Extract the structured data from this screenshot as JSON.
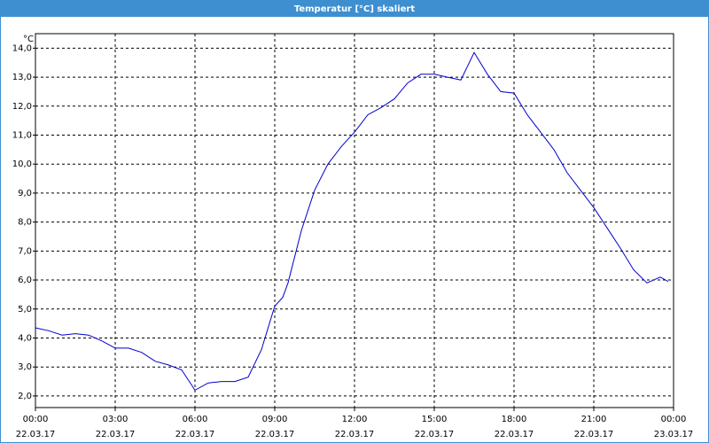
{
  "chart_data": {
    "type": "line",
    "title": "Temperatur [°C] skaliert",
    "y_label": "°C",
    "color": "#0000cc",
    "grid": true,
    "x": [
      0,
      0.5,
      1,
      1.5,
      2,
      2.5,
      3,
      3.5,
      4,
      4.5,
      5,
      5.5,
      6,
      6.5,
      7,
      7.5,
      8,
      8.5,
      9,
      9.3,
      9.5,
      10,
      10.5,
      11,
      11.5,
      12,
      12.5,
      13,
      13.5,
      14,
      14.5,
      15,
      15.5,
      16,
      16.5,
      17,
      17.5,
      18,
      18.5,
      19,
      19.5,
      20,
      20.5,
      21,
      21.5,
      22,
      22.5,
      23,
      23.5,
      23.8
    ],
    "values": [
      4.35,
      4.25,
      4.1,
      4.15,
      4.1,
      3.9,
      3.65,
      3.65,
      3.5,
      3.2,
      3.07,
      2.9,
      2.2,
      2.45,
      2.5,
      2.5,
      2.65,
      3.6,
      5.1,
      5.4,
      5.9,
      7.7,
      9.1,
      10.0,
      10.6,
      11.1,
      11.7,
      11.95,
      12.25,
      12.8,
      13.1,
      13.1,
      13.0,
      12.9,
      13.85,
      13.1,
      12.5,
      12.45,
      11.7,
      11.1,
      10.5,
      9.7,
      9.1,
      8.5,
      7.8,
      7.1,
      6.35,
      5.9,
      6.1,
      5.95
    ],
    "xlim": [
      0,
      24
    ],
    "xticks": [
      {
        "value": 0,
        "label": "00:00\n22.03.17"
      },
      {
        "value": 3,
        "label": "03:00\n22.03.17"
      },
      {
        "value": 6,
        "label": "06:00\n22.03.17"
      },
      {
        "value": 9,
        "label": "09:00\n22.03.17"
      },
      {
        "value": 12,
        "label": "12:00\n22.03.17"
      },
      {
        "value": 15,
        "label": "15:00\n22.03.17"
      },
      {
        "value": 18,
        "label": "18:00\n22.03.17"
      },
      {
        "value": 21,
        "label": "21:00\n22.03.17"
      },
      {
        "value": 24,
        "label": "00:00\n23.03.17"
      }
    ],
    "ylim": [
      1.6,
      14.5
    ],
    "yticks": [
      {
        "value": 2,
        "label": "2,0"
      },
      {
        "value": 3,
        "label": "3,0"
      },
      {
        "value": 4,
        "label": "4,0"
      },
      {
        "value": 5,
        "label": "5,0"
      },
      {
        "value": 6,
        "label": "6,0"
      },
      {
        "value": 7,
        "label": "7,0"
      },
      {
        "value": 8,
        "label": "8,0"
      },
      {
        "value": 9,
        "label": "9,0"
      },
      {
        "value": 10,
        "label": "10,0"
      },
      {
        "value": 11,
        "label": "11,0"
      },
      {
        "value": 12,
        "label": "12,0"
      },
      {
        "value": 13,
        "label": "13,0"
      },
      {
        "value": 14,
        "label": "14,0"
      }
    ]
  }
}
